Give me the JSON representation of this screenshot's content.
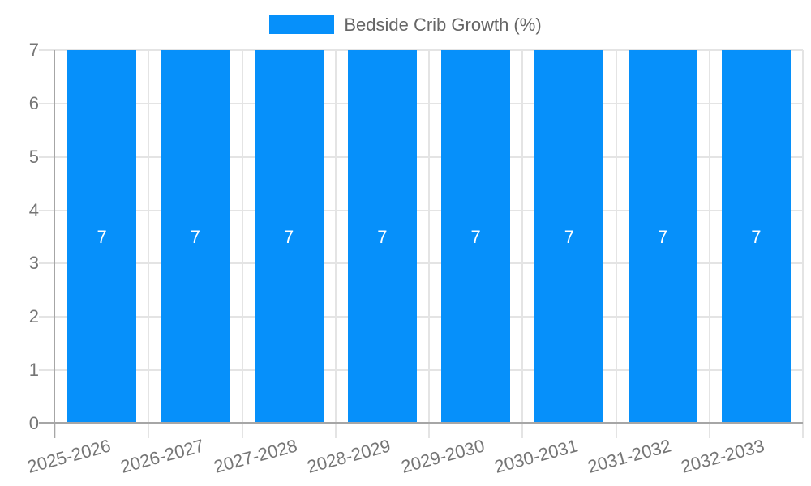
{
  "legend": {
    "label": "Bedside Crib Growth (%)"
  },
  "colors": {
    "bar": "#0690fa",
    "grid": "#e4e4e4",
    "axis": "#a6a6a6",
    "tick_text": "#757575",
    "legend_text": "#666666",
    "value_label": "#ffffff",
    "background": "#ffffff"
  },
  "chart_data": {
    "type": "bar",
    "title": "",
    "categories": [
      "2025-2026",
      "2026-2027",
      "2027-2028",
      "2028-2029",
      "2029-2030",
      "2030-2031",
      "2031-2032",
      "2032-2033"
    ],
    "series": [
      {
        "name": "Bedside Crib Growth (%)",
        "values": [
          7,
          7,
          7,
          7,
          7,
          7,
          7,
          7
        ],
        "color": "#0690fa"
      }
    ],
    "value_labels": [
      "7",
      "7",
      "7",
      "7",
      "7",
      "7",
      "7",
      "7"
    ],
    "xlabel": "",
    "ylabel": "",
    "ylim": [
      0,
      7
    ],
    "yticks": [
      0,
      1,
      2,
      3,
      4,
      5,
      6,
      7
    ],
    "grid": true,
    "legend_position": "top-center"
  }
}
